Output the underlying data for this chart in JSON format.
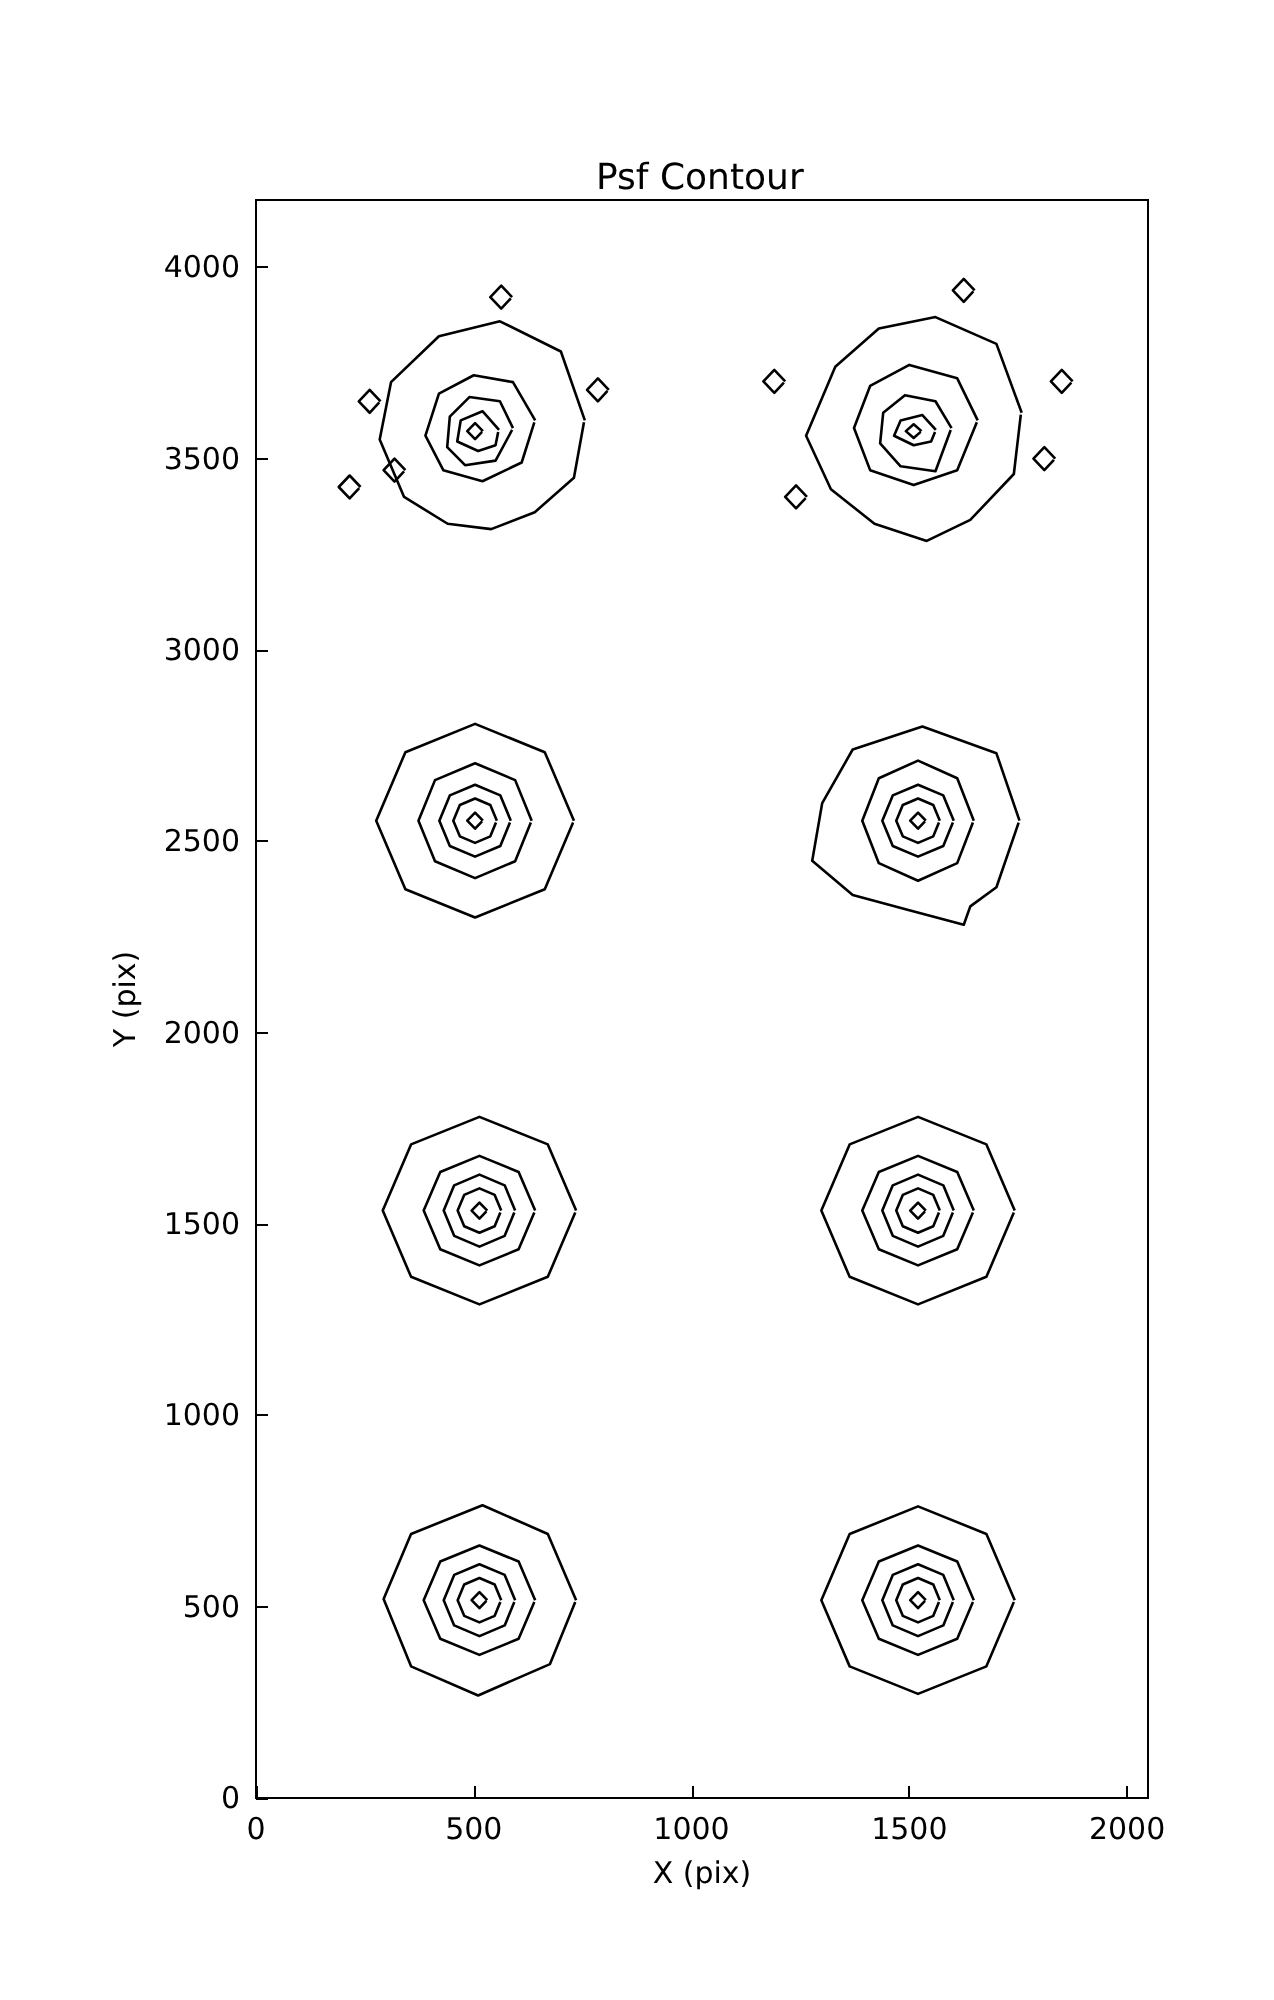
{
  "chart_data": {
    "type": "line",
    "title": "Psf Contour",
    "xlabel": "X (pix)",
    "ylabel": "Y (pix)",
    "color": "#000000",
    "marker": "none",
    "line_style": "solid",
    "grid": false,
    "xlim": [
      0,
      2048
    ],
    "xticks": [
      0,
      500,
      1000,
      1500,
      2000
    ],
    "ylim": [
      0,
      4176
    ],
    "yticks": [
      0,
      500,
      1000,
      1500,
      2000,
      2500,
      3000,
      3500,
      4000
    ],
    "series": [
      {
        "x": [
          735,
          670,
          520,
          356,
          293,
          356,
          510,
          675,
          733
        ],
        "values": [
          517,
          690,
          765,
          690,
          520,
          344,
          268,
          350,
          512
        ]
      },
      {
        "x": [
          641,
          603,
          513,
          423,
          385,
          423,
          513,
          603,
          639
        ],
        "values": [
          517,
          618,
          660,
          618,
          517,
          416,
          374,
          416,
          512
        ]
      },
      {
        "x": [
          595,
          571,
          513,
          455,
          431,
          455,
          513,
          571,
          593
        ],
        "values": [
          517,
          583,
          611,
          583,
          517,
          451,
          423,
          451,
          512
        ]
      },
      {
        "x": [
          563,
          548,
          513,
          478,
          463,
          478,
          513,
          548,
          561
        ],
        "values": [
          517,
          558,
          575,
          558,
          517,
          476,
          459,
          476,
          512
        ]
      },
      {
        "x": [
          531,
          513,
          495,
          513,
          529
        ],
        "values": [
          517,
          538,
          517,
          496,
          515
        ]
      },
      {
        "x": [
          1742,
          1677,
          1520,
          1363,
          1298,
          1363,
          1520,
          1677,
          1740
        ],
        "values": [
          517,
          690,
          762,
          690,
          517,
          344,
          272,
          344,
          512
        ]
      },
      {
        "x": [
          1648,
          1610,
          1520,
          1430,
          1392,
          1430,
          1520,
          1610,
          1646
        ],
        "values": [
          517,
          618,
          660,
          618,
          517,
          416,
          374,
          416,
          512
        ]
      },
      {
        "x": [
          1602,
          1578,
          1520,
          1462,
          1438,
          1462,
          1520,
          1578,
          1600
        ],
        "values": [
          517,
          583,
          611,
          583,
          517,
          451,
          423,
          451,
          512
        ]
      },
      {
        "x": [
          1570,
          1555,
          1520,
          1485,
          1470,
          1485,
          1520,
          1555,
          1568
        ],
        "values": [
          517,
          558,
          575,
          558,
          517,
          476,
          459,
          476,
          512
        ]
      },
      {
        "x": [
          1538,
          1520,
          1502,
          1520,
          1536
        ],
        "values": [
          517,
          538,
          517,
          496,
          515
        ]
      },
      {
        "x": [
          735,
          670,
          513,
          356,
          291,
          356,
          513,
          670,
          733
        ],
        "values": [
          1535,
          1708,
          1780,
          1708,
          1535,
          1362,
          1290,
          1362,
          1530
        ]
      },
      {
        "x": [
          641,
          603,
          513,
          423,
          385,
          423,
          513,
          603,
          639
        ],
        "values": [
          1535,
          1636,
          1678,
          1636,
          1535,
          1434,
          1392,
          1434,
          1530
        ]
      },
      {
        "x": [
          595,
          571,
          513,
          455,
          431,
          455,
          513,
          571,
          593
        ],
        "values": [
          1535,
          1601,
          1629,
          1601,
          1535,
          1469,
          1441,
          1469,
          1530
        ]
      },
      {
        "x": [
          563,
          548,
          513,
          478,
          463,
          478,
          513,
          548,
          561
        ],
        "values": [
          1535,
          1576,
          1593,
          1576,
          1535,
          1494,
          1477,
          1494,
          1530
        ]
      },
      {
        "x": [
          531,
          513,
          495,
          513,
          529
        ],
        "values": [
          1535,
          1556,
          1535,
          1514,
          1533
        ]
      },
      {
        "x": [
          1742,
          1677,
          1520,
          1363,
          1298,
          1363,
          1520,
          1677,
          1740
        ],
        "values": [
          1535,
          1708,
          1780,
          1708,
          1535,
          1362,
          1290,
          1362,
          1530
        ]
      },
      {
        "x": [
          1648,
          1610,
          1520,
          1430,
          1392,
          1430,
          1520,
          1610,
          1646
        ],
        "values": [
          1535,
          1636,
          1678,
          1636,
          1535,
          1434,
          1392,
          1434,
          1530
        ]
      },
      {
        "x": [
          1602,
          1578,
          1520,
          1462,
          1438,
          1462,
          1520,
          1578,
          1600
        ],
        "values": [
          1535,
          1601,
          1629,
          1601,
          1535,
          1469,
          1441,
          1469,
          1530
        ]
      },
      {
        "x": [
          1570,
          1555,
          1520,
          1485,
          1470,
          1485,
          1520,
          1555,
          1568
        ],
        "values": [
          1535,
          1576,
          1593,
          1576,
          1535,
          1494,
          1477,
          1494,
          1530
        ]
      },
      {
        "x": [
          1538,
          1520,
          1502,
          1520,
          1536
        ],
        "values": [
          1535,
          1556,
          1535,
          1514,
          1533
        ]
      },
      {
        "x": [
          730,
          663,
          503,
          343,
          276,
          343,
          503,
          663,
          728
        ],
        "values": [
          2554,
          2733,
          2807,
          2733,
          2554,
          2375,
          2301,
          2375,
          2549
        ]
      },
      {
        "x": [
          633,
          595,
          503,
          411,
          373,
          411,
          503,
          595,
          631
        ],
        "values": [
          2554,
          2660,
          2704,
          2660,
          2554,
          2448,
          2404,
          2448,
          2549
        ]
      },
      {
        "x": [
          585,
          561,
          503,
          445,
          421,
          445,
          503,
          561,
          583
        ],
        "values": [
          2554,
          2620,
          2648,
          2620,
          2554,
          2488,
          2460,
          2488,
          2549
        ]
      },
      {
        "x": [
          553,
          538,
          503,
          468,
          453,
          468,
          503,
          538,
          551
        ],
        "values": [
          2554,
          2595,
          2612,
          2595,
          2554,
          2513,
          2496,
          2513,
          2549
        ]
      },
      {
        "x": [
          521,
          503,
          485,
          503,
          519
        ],
        "values": [
          2554,
          2575,
          2554,
          2533,
          2552
        ]
      },
      {
        "x": [
          1753,
          1700,
          1530,
          1370,
          1300,
          1277,
          1370,
          1500,
          1625,
          1640,
          1700,
          1751
        ],
        "values": [
          2554,
          2730,
          2800,
          2740,
          2600,
          2449,
          2360,
          2320,
          2282,
          2330,
          2380,
          2549
        ]
      },
      {
        "x": [
          1648,
          1610,
          1520,
          1430,
          1392,
          1430,
          1520,
          1610,
          1646
        ],
        "values": [
          2554,
          2665,
          2711,
          2665,
          2554,
          2443,
          2397,
          2443,
          2549
        ]
      },
      {
        "x": [
          1602,
          1578,
          1520,
          1462,
          1438,
          1462,
          1520,
          1578,
          1600
        ],
        "values": [
          2554,
          2620,
          2648,
          2620,
          2554,
          2488,
          2460,
          2488,
          2549
        ]
      },
      {
        "x": [
          1570,
          1555,
          1520,
          1485,
          1470,
          1485,
          1520,
          1555,
          1568
        ],
        "values": [
          2554,
          2595,
          2612,
          2595,
          2554,
          2513,
          2496,
          2513,
          2549
        ]
      },
      {
        "x": [
          1538,
          1520,
          1502,
          1520,
          1536
        ],
        "values": [
          2554,
          2575,
          2554,
          2533,
          2552
        ]
      },
      {
        "x": [
          755,
          700,
          560,
          420,
          310,
          284,
          340,
          440,
          540,
          640,
          730,
          753
        ],
        "values": [
          3600,
          3780,
          3859,
          3820,
          3700,
          3550,
          3400,
          3330,
          3316,
          3360,
          3450,
          3595
        ]
      },
      {
        "x": [
          641,
          590,
          500,
          420,
          389,
          430,
          520,
          610,
          639
        ],
        "values": [
          3600,
          3700,
          3718,
          3670,
          3560,
          3470,
          3441,
          3490,
          3595
        ]
      },
      {
        "x": [
          590,
          560,
          490,
          445,
          439,
          480,
          550,
          588
        ],
        "values": [
          3580,
          3650,
          3661,
          3610,
          3530,
          3483,
          3495,
          3575
        ]
      },
      {
        "x": [
          558,
          520,
          470,
          462,
          510,
          550,
          556
        ],
        "values": [
          3575,
          3624,
          3600,
          3545,
          3520,
          3535,
          3570
        ]
      },
      {
        "x": [
          521,
          503,
          485,
          503,
          519
        ],
        "values": [
          3572,
          3593,
          3572,
          3551,
          3570
        ]
      },
      {
        "x": [
          1758,
          1700,
          1560,
          1430,
          1330,
          1263,
          1320,
          1420,
          1540,
          1640,
          1740,
          1756
        ],
        "values": [
          3620,
          3800,
          3870,
          3840,
          3740,
          3560,
          3420,
          3330,
          3285,
          3340,
          3460,
          3615
        ]
      },
      {
        "x": [
          1657,
          1610,
          1500,
          1410,
          1373,
          1410,
          1510,
          1610,
          1655
        ],
        "values": [
          3600,
          3710,
          3745,
          3690,
          3580,
          3470,
          3431,
          3470,
          3595
        ]
      },
      {
        "x": [
          1597,
          1560,
          1490,
          1440,
          1433,
          1480,
          1560,
          1595
        ],
        "values": [
          3580,
          3650,
          3666,
          3620,
          3540,
          3480,
          3467,
          3575
        ]
      },
      {
        "x": [
          1561,
          1530,
          1480,
          1465,
          1510,
          1550,
          1559
        ],
        "values": [
          3575,
          3614,
          3600,
          3560,
          3535,
          3545,
          3570
        ]
      },
      {
        "x": [
          1528,
          1510,
          1492,
          1510,
          1526
        ],
        "values": [
          3572,
          3590,
          3572,
          3554,
          3570
        ]
      },
      {
        "x": [
          240,
          215,
          190,
          215,
          237
        ],
        "values": [
          3426,
          3456,
          3426,
          3396,
          3423
        ]
      },
      {
        "x": [
          343,
          318,
          293,
          318,
          340
        ],
        "values": [
          3470,
          3500,
          3470,
          3440,
          3467
        ]
      },
      {
        "x": [
          286,
          261,
          236,
          261,
          283
        ],
        "values": [
          3650,
          3680,
          3650,
          3620,
          3647
        ]
      },
      {
        "x": [
          588,
          563,
          538,
          563,
          585
        ],
        "values": [
          3922,
          3952,
          3922,
          3892,
          3919
        ]
      },
      {
        "x": [
          810,
          785,
          760,
          785,
          807
        ],
        "values": [
          3680,
          3710,
          3680,
          3650,
          3677
        ]
      },
      {
        "x": [
          1215,
          1190,
          1165,
          1190,
          1212
        ],
        "values": [
          3702,
          3732,
          3702,
          3672,
          3699
        ]
      },
      {
        "x": [
          1265,
          1240,
          1215,
          1240,
          1262
        ],
        "values": [
          3400,
          3430,
          3400,
          3370,
          3397
        ]
      },
      {
        "x": [
          1875,
          1850,
          1825,
          1850,
          1872
        ],
        "values": [
          3702,
          3732,
          3702,
          3672,
          3699
        ]
      },
      {
        "x": [
          1835,
          1810,
          1785,
          1810,
          1832
        ],
        "values": [
          3500,
          3530,
          3500,
          3470,
          3497
        ]
      },
      {
        "x": [
          1650,
          1625,
          1600,
          1625,
          1647
        ],
        "values": [
          3940,
          3970,
          3940,
          3910,
          3937
        ]
      }
    ]
  }
}
